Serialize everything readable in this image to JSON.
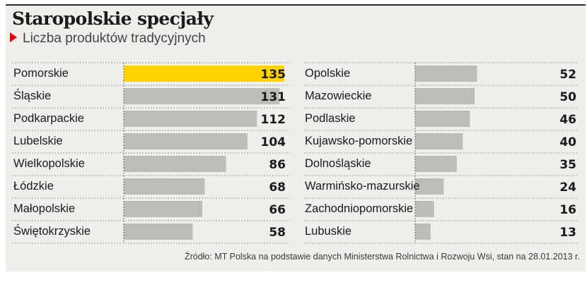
{
  "title": "Staropolskie specjały",
  "subtitle": "Liczba produktów tradycyjnych",
  "source": "Źródło: MT Polska na podstawie danych Ministerstwa Rolnictwa i Rozwoju Wsi, stan na 28.01.2013 r.",
  "colors": {
    "highlight": "#ffd200",
    "bar": "#bebcb6",
    "accent": "#e3000f"
  },
  "chart_data": [
    {
      "type": "bar",
      "orientation": "horizontal",
      "categories": [
        "Pomorskie",
        "Śląskie",
        "Podkarpackie",
        "Lubelskie",
        "Wielkopolskie",
        "Łódzkie",
        "Małopolskie",
        "Świętokrzyskie"
      ],
      "values": [
        135,
        131,
        112,
        104,
        86,
        68,
        66,
        58
      ],
      "labels": [
        "135",
        "131",
        "112",
        "104",
        "86",
        "68",
        "66",
        "58"
      ],
      "highlight": "Pomorskie",
      "xlim": [
        0,
        135
      ]
    },
    {
      "type": "bar",
      "orientation": "horizontal",
      "categories": [
        "Opolskie",
        "Mazowieckie",
        "Podlaskie",
        "Kujawsko-pomorskie",
        "Dolnośląskie",
        "Warmińsko-mazurskie",
        "Zachodniopomorskie",
        "Lubuskie"
      ],
      "values": [
        52,
        50,
        46,
        40,
        35,
        24,
        16,
        13
      ],
      "labels": [
        "52",
        "50",
        "46",
        "40",
        "35",
        "24",
        "16",
        "13"
      ],
      "xlim": [
        0,
        135
      ]
    }
  ]
}
